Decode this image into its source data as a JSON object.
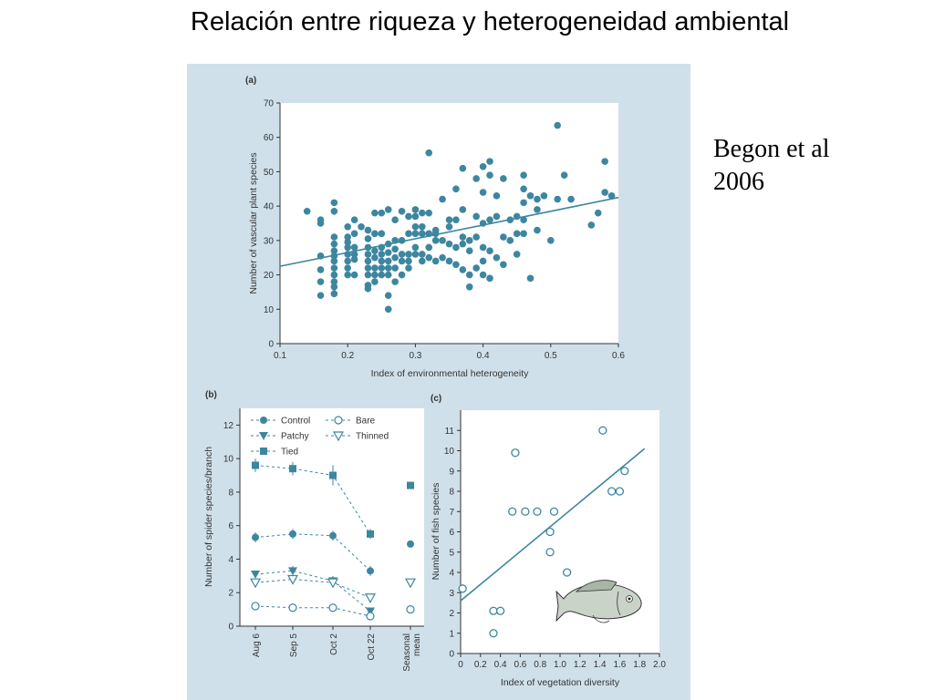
{
  "slide": {
    "title": "Relación entre riqueza y heterogeneidad ambiental",
    "citation_line1": "Begon et al",
    "citation_line2": "2006"
  },
  "colors": {
    "marker": "#3d86a0",
    "panel_bg": "#d0e0ea",
    "plot_bg": "#ffffff"
  },
  "chart_data": [
    {
      "panel_label": "(a)",
      "type": "scatter",
      "xlabel": "Index of environmental heterogeneity",
      "ylabel": "Number of vascular plant species",
      "xlim": [
        0.1,
        0.6
      ],
      "ylim": [
        0,
        70
      ],
      "xticks": [
        "0.1",
        "0.2",
        "0.3",
        "0.4",
        "0.5",
        "0.6"
      ],
      "yticks": [
        "0",
        "10",
        "20",
        "30",
        "40",
        "50",
        "60",
        "70"
      ],
      "trendline": [
        [
          0.1,
          22.5
        ],
        [
          0.6,
          42.5
        ]
      ],
      "points": [
        [
          0.14,
          38.5
        ],
        [
          0.16,
          35
        ],
        [
          0.16,
          36
        ],
        [
          0.16,
          25.5
        ],
        [
          0.16,
          21.5
        ],
        [
          0.16,
          18
        ],
        [
          0.16,
          14
        ],
        [
          0.18,
          41
        ],
        [
          0.18,
          38.5
        ],
        [
          0.18,
          31
        ],
        [
          0.18,
          29
        ],
        [
          0.18,
          27
        ],
        [
          0.18,
          25.5
        ],
        [
          0.18,
          24
        ],
        [
          0.18,
          22
        ],
        [
          0.18,
          20
        ],
        [
          0.18,
          18
        ],
        [
          0.18,
          16.5
        ],
        [
          0.18,
          14.5
        ],
        [
          0.2,
          34
        ],
        [
          0.2,
          31
        ],
        [
          0.2,
          29.5
        ],
        [
          0.2,
          28
        ],
        [
          0.2,
          26
        ],
        [
          0.2,
          24
        ],
        [
          0.2,
          22
        ],
        [
          0.2,
          20
        ],
        [
          0.21,
          36
        ],
        [
          0.21,
          32
        ],
        [
          0.21,
          28
        ],
        [
          0.21,
          26
        ],
        [
          0.21,
          24.5
        ],
        [
          0.21,
          20
        ],
        [
          0.22,
          34
        ],
        [
          0.23,
          33
        ],
        [
          0.23,
          30.5
        ],
        [
          0.23,
          28
        ],
        [
          0.23,
          26
        ],
        [
          0.23,
          24
        ],
        [
          0.23,
          22
        ],
        [
          0.23,
          20
        ],
        [
          0.23,
          17
        ],
        [
          0.23,
          16
        ],
        [
          0.24,
          38
        ],
        [
          0.24,
          32
        ],
        [
          0.24,
          27
        ],
        [
          0.24,
          25
        ],
        [
          0.24,
          22
        ],
        [
          0.24,
          20
        ],
        [
          0.24,
          18
        ],
        [
          0.25,
          32
        ],
        [
          0.25,
          28
        ],
        [
          0.25,
          26
        ],
        [
          0.25,
          24
        ],
        [
          0.25,
          22
        ],
        [
          0.25,
          20
        ],
        [
          0.25,
          38
        ],
        [
          0.26,
          39
        ],
        [
          0.26,
          29
        ],
        [
          0.26,
          26.5
        ],
        [
          0.26,
          24
        ],
        [
          0.26,
          22
        ],
        [
          0.26,
          20
        ],
        [
          0.26,
          14
        ],
        [
          0.26,
          10
        ],
        [
          0.27,
          36
        ],
        [
          0.27,
          30
        ],
        [
          0.27,
          27.5
        ],
        [
          0.27,
          25
        ],
        [
          0.27,
          22
        ],
        [
          0.27,
          18
        ],
        [
          0.28,
          38.5
        ],
        [
          0.28,
          30
        ],
        [
          0.28,
          26
        ],
        [
          0.28,
          24
        ],
        [
          0.28,
          20
        ],
        [
          0.29,
          37
        ],
        [
          0.29,
          32
        ],
        [
          0.29,
          26
        ],
        [
          0.29,
          24
        ],
        [
          0.29,
          22
        ],
        [
          0.3,
          39
        ],
        [
          0.3,
          37
        ],
        [
          0.3,
          34
        ],
        [
          0.3,
          32
        ],
        [
          0.3,
          28
        ],
        [
          0.3,
          26
        ],
        [
          0.31,
          38
        ],
        [
          0.31,
          34
        ],
        [
          0.31,
          32
        ],
        [
          0.31,
          26
        ],
        [
          0.31,
          24
        ],
        [
          0.32,
          55.5
        ],
        [
          0.32,
          38
        ],
        [
          0.32,
          32
        ],
        [
          0.32,
          28
        ],
        [
          0.32,
          25
        ],
        [
          0.33,
          33
        ],
        [
          0.33,
          30
        ],
        [
          0.33,
          24
        ],
        [
          0.33,
          32
        ],
        [
          0.34,
          42
        ],
        [
          0.34,
          30
        ],
        [
          0.34,
          25
        ],
        [
          0.35,
          36
        ],
        [
          0.35,
          34
        ],
        [
          0.35,
          29
        ],
        [
          0.35,
          24
        ],
        [
          0.36,
          45
        ],
        [
          0.36,
          36
        ],
        [
          0.36,
          28
        ],
        [
          0.36,
          23
        ],
        [
          0.37,
          51
        ],
        [
          0.37,
          39
        ],
        [
          0.37,
          31
        ],
        [
          0.37,
          29
        ],
        [
          0.37,
          21.5
        ],
        [
          0.38,
          30
        ],
        [
          0.38,
          27
        ],
        [
          0.38,
          16.5
        ],
        [
          0.38,
          20
        ],
        [
          0.39,
          48
        ],
        [
          0.39,
          37
        ],
        [
          0.39,
          31
        ],
        [
          0.39,
          22
        ],
        [
          0.4,
          51.5
        ],
        [
          0.4,
          44
        ],
        [
          0.4,
          35
        ],
        [
          0.4,
          28
        ],
        [
          0.4,
          24
        ],
        [
          0.4,
          20
        ],
        [
          0.41,
          53
        ],
        [
          0.41,
          49
        ],
        [
          0.41,
          36
        ],
        [
          0.41,
          27
        ],
        [
          0.41,
          19
        ],
        [
          0.42,
          43
        ],
        [
          0.42,
          37
        ],
        [
          0.42,
          25
        ],
        [
          0.43,
          48
        ],
        [
          0.43,
          31
        ],
        [
          0.43,
          23
        ],
        [
          0.44,
          36
        ],
        [
          0.44,
          30
        ],
        [
          0.45,
          37
        ],
        [
          0.45,
          32
        ],
        [
          0.45,
          26
        ],
        [
          0.46,
          45
        ],
        [
          0.46,
          49
        ],
        [
          0.46,
          41
        ],
        [
          0.46,
          36
        ],
        [
          0.46,
          32
        ],
        [
          0.47,
          43
        ],
        [
          0.47,
          19
        ],
        [
          0.48,
          42
        ],
        [
          0.48,
          39
        ],
        [
          0.48,
          33
        ],
        [
          0.49,
          43
        ],
        [
          0.5,
          30
        ],
        [
          0.51,
          63.5
        ],
        [
          0.51,
          42
        ],
        [
          0.52,
          49
        ],
        [
          0.53,
          42
        ],
        [
          0.56,
          34.5
        ],
        [
          0.57,
          38
        ],
        [
          0.58,
          53
        ],
        [
          0.58,
          44
        ],
        [
          0.59,
          43
        ]
      ]
    },
    {
      "panel_label": "(b)",
      "type": "line",
      "ylabel": "Number of spider species/branch",
      "ylim": [
        0,
        13
      ],
      "yticks": [
        "0",
        "2",
        "4",
        "6",
        "8",
        "10",
        "12"
      ],
      "categories": [
        "Aug 6",
        "Sep 5",
        "Oct 2",
        "Oct 22"
      ],
      "seasonal_label_1": "Seasonal",
      "seasonal_label_2": "mean",
      "series": [
        {
          "name": "Tied",
          "marker": "square",
          "values": [
            9.6,
            9.4,
            9.0,
            5.5
          ],
          "mean": 8.4,
          "errors": [
            0.4,
            0.4,
            0.6,
            0.3
          ]
        },
        {
          "name": "Control",
          "marker": "circle-filled",
          "values": [
            5.3,
            5.5,
            5.4,
            3.3
          ],
          "mean": 4.9,
          "errors": [
            0.3,
            0.3,
            0.3,
            0.3
          ]
        },
        {
          "name": "Patchy",
          "marker": "triangle-filled",
          "values": [
            3.1,
            3.3,
            2.7,
            0.9
          ],
          "mean": null,
          "errors": [
            0.2,
            0.3,
            0.3,
            0.2
          ]
        },
        {
          "name": "Thinned",
          "marker": "triangle-open",
          "values": [
            2.6,
            2.8,
            2.6,
            1.7
          ],
          "mean": 2.6,
          "errors": [
            0.2,
            0.2,
            0.2,
            0.2
          ]
        },
        {
          "name": "Bare",
          "marker": "circle-open",
          "values": [
            1.2,
            1.1,
            1.1,
            0.6
          ],
          "mean": 1.0,
          "errors": [
            0.1,
            0.1,
            0.1,
            0.1
          ]
        }
      ]
    },
    {
      "panel_label": "(c)",
      "type": "scatter",
      "xlabel": "Index of vegetation diversity",
      "ylabel": "Number of fish species",
      "xlim": [
        0,
        2.0
      ],
      "ylim": [
        0,
        12
      ],
      "xticks": [
        "0",
        "0.2",
        "0.4",
        "0.6",
        "0.8",
        "1.0",
        "1.2",
        "1.4",
        "1.6",
        "1.8",
        "2.0"
      ],
      "yticks": [
        "0",
        "1",
        "2",
        "3",
        "4",
        "5",
        "6",
        "7",
        "8",
        "9",
        "10",
        "11"
      ],
      "trendline": [
        [
          0,
          2.6
        ],
        [
          1.85,
          10.1
        ]
      ],
      "points": [
        [
          0.02,
          3.2
        ],
        [
          0.33,
          2.1
        ],
        [
          0.33,
          1.0
        ],
        [
          0.4,
          2.1
        ],
        [
          0.52,
          7.0
        ],
        [
          0.55,
          9.9
        ],
        [
          0.65,
          7.0
        ],
        [
          0.77,
          7.0
        ],
        [
          0.9,
          6.0
        ],
        [
          0.9,
          5.0
        ],
        [
          0.94,
          7.0
        ],
        [
          1.07,
          4.0
        ],
        [
          1.43,
          11.0
        ],
        [
          1.52,
          8.0
        ],
        [
          1.6,
          8.0
        ],
        [
          1.65,
          9.0
        ]
      ]
    }
  ]
}
